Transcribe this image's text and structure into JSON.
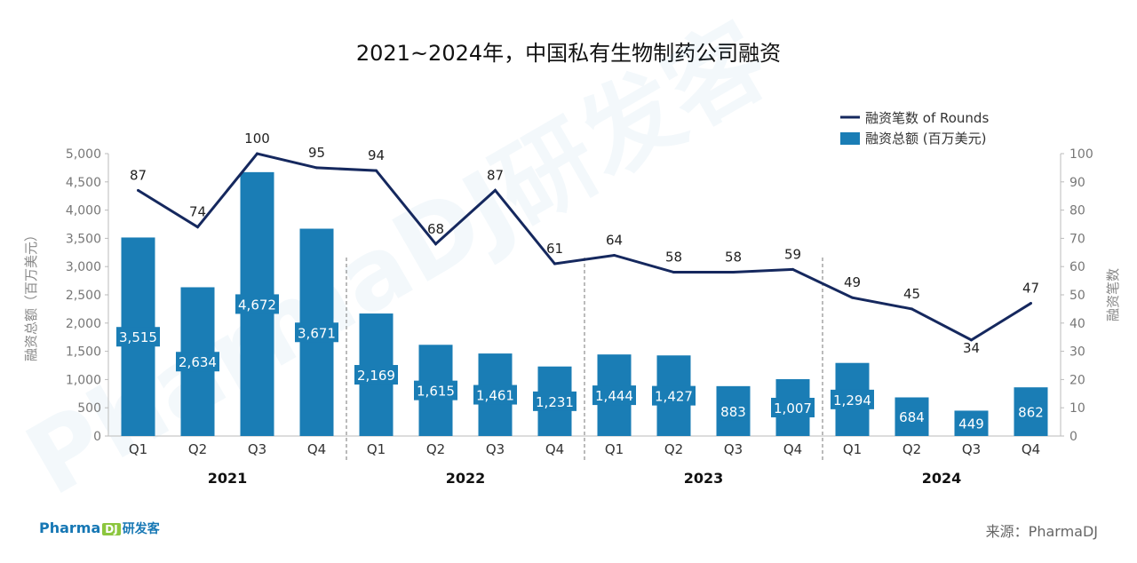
{
  "title": "2021~2024年，中国私有生物制药公司融资",
  "source": "来源：PharmaDJ",
  "logo": {
    "text": "Pharma",
    "box": "DJ",
    "cn": "研发客"
  },
  "watermark": "PharmaDJ研发客",
  "colors": {
    "bar": "#1a7db5",
    "line": "#15285e",
    "axis": "#888888"
  },
  "chart_data": {
    "type": "bar",
    "categories": [
      "Q1",
      "Q2",
      "Q3",
      "Q4",
      "Q1",
      "Q2",
      "Q3",
      "Q4",
      "Q1",
      "Q2",
      "Q3",
      "Q4",
      "Q1",
      "Q2",
      "Q3",
      "Q4"
    ],
    "groups": [
      "2021",
      "2022",
      "2023",
      "2024"
    ],
    "ylabel": "融资总额（百万美元）",
    "y2label": "融资笔数",
    "ylim": [
      0,
      5000
    ],
    "y2lim": [
      0,
      100
    ],
    "yticks": [
      "0",
      "500",
      "1,000",
      "1,500",
      "2,000",
      "2,500",
      "3,000",
      "3,500",
      "4,000",
      "4,500",
      "5,000"
    ],
    "y2ticks": [
      "0",
      "10",
      "20",
      "30",
      "40",
      "50",
      "60",
      "70",
      "80",
      "90",
      "100"
    ],
    "legend_position": "top-right",
    "series": [
      {
        "name": "融资总额 (百万美元)",
        "type": "bar",
        "values": [
          3515,
          2634,
          4672,
          3671,
          2169,
          1615,
          1461,
          1231,
          1444,
          1427,
          883,
          1007,
          1294,
          684,
          449,
          862
        ],
        "labels": [
          "3,515",
          "2,634",
          "4,672",
          "3,671",
          "2,169",
          "1,615",
          "1,461",
          "1,231",
          "1,444",
          "1,427",
          "883",
          "1,007",
          "1,294",
          "684",
          "449",
          "862"
        ]
      },
      {
        "name": "融资笔数 of Rounds",
        "type": "line",
        "axis": "right",
        "values": [
          87,
          74,
          100,
          95,
          94,
          68,
          87,
          61,
          64,
          58,
          58,
          59,
          49,
          45,
          34,
          47
        ]
      }
    ]
  }
}
